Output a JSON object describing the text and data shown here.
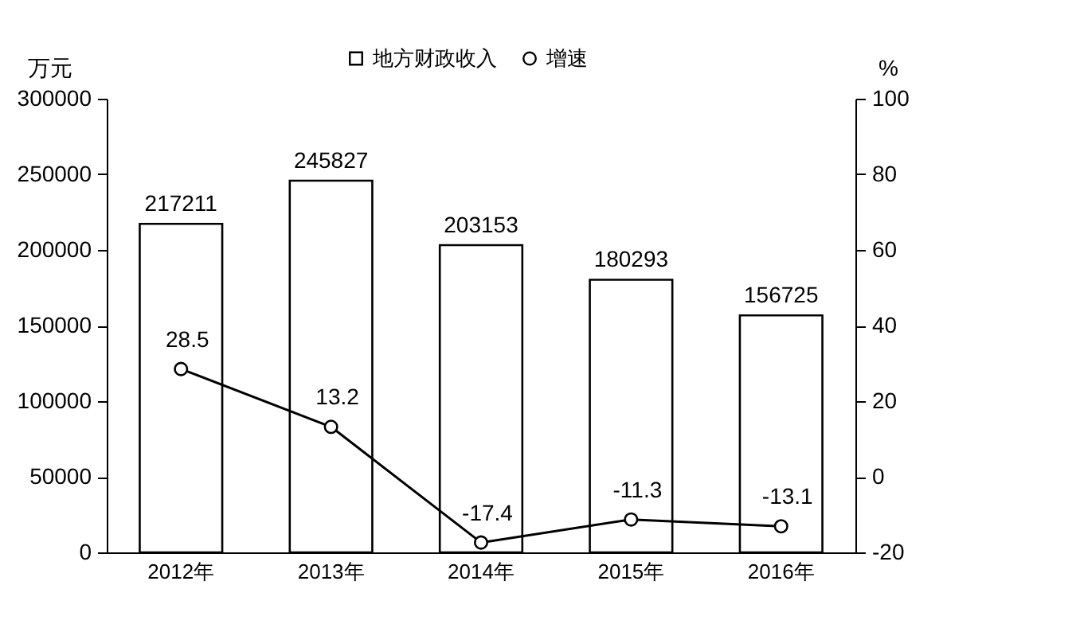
{
  "chart_data": {
    "type": "bar",
    "categories": [
      "2012年",
      "2013年",
      "2014年",
      "2015年",
      "2016年"
    ],
    "series": [
      {
        "name": "地方财政收入",
        "color": "#ffffff",
        "values": [
          217211,
          245827,
          203153,
          180293,
          156725
        ]
      },
      {
        "name": "增速",
        "type": "line",
        "axis": "y2",
        "color": "#000000",
        "values": [
          28.5,
          13.2,
          -17.4,
          -11.3,
          -13.1
        ]
      }
    ],
    "ylabel": "万元",
    "y2label": "%",
    "ylim": [
      0,
      300000
    ],
    "yticks": [
      0,
      50000,
      100000,
      150000,
      200000,
      250000,
      300000
    ],
    "y2lim": [
      -20,
      100
    ],
    "y2ticks": [
      -20,
      0,
      20,
      40,
      60,
      80,
      100
    ],
    "legend": "top",
    "marker": "circle",
    "data_labels": true
  }
}
